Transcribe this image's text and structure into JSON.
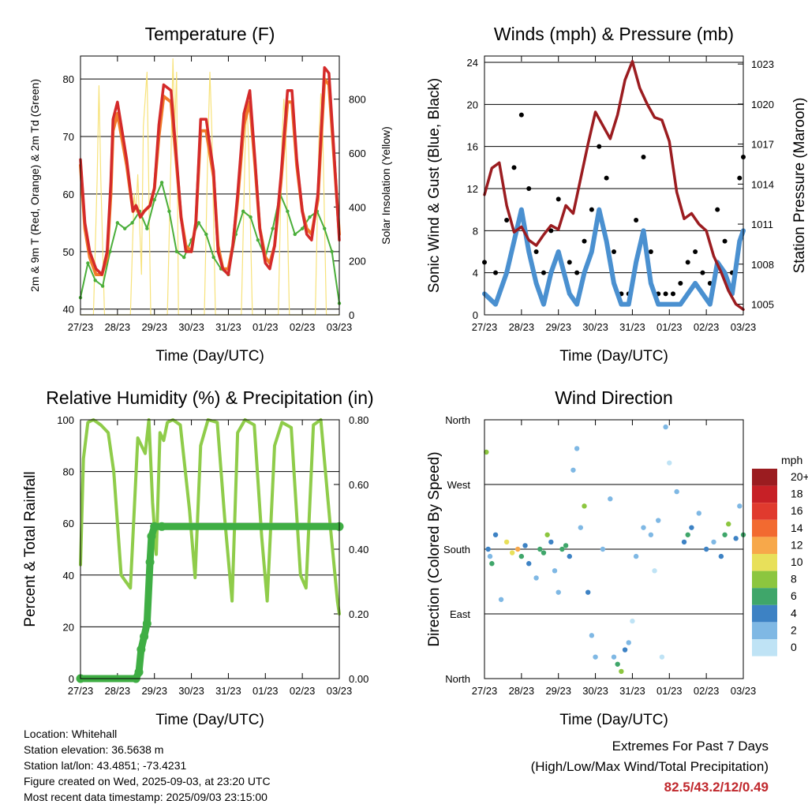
{
  "chart_data": [
    {
      "type": "line",
      "title": "Temperature (F)",
      "xlabel": "Time (Day/UTC)",
      "ylabel": "2m & 9m T (Red, Orange) & 2m Td (Green)",
      "ylabel_right": "Solar Insolation (Yellow)",
      "categories": [
        "27/23",
        "28/23",
        "29/23",
        "30/23",
        "31/23",
        "01/23",
        "02/23",
        "03/23"
      ],
      "ylim": [
        39,
        84
      ],
      "y_ticks": [
        40,
        50,
        60,
        70,
        80
      ],
      "y2lim": [
        0,
        960
      ],
      "y2_ticks": [
        0,
        200,
        400,
        600,
        800
      ],
      "series": [
        {
          "name": "2m T",
          "color": "#d42a2a",
          "x": [
            0,
            0.12,
            0.25,
            0.42,
            0.58,
            0.72,
            0.82,
            0.88,
            1.0,
            1.25,
            1.42,
            1.5,
            1.62,
            1.72,
            1.88,
            2.0,
            2.12,
            2.25,
            2.45,
            2.6,
            2.72,
            2.85,
            3.0,
            3.12,
            3.25,
            3.4,
            3.6,
            3.72,
            3.85,
            4.0,
            4.12,
            4.25,
            4.42,
            4.58,
            4.72,
            4.85,
            5.0,
            5.12,
            5.25,
            5.42,
            5.6,
            5.72,
            5.85,
            6.0,
            6.12,
            6.25,
            6.42,
            6.6,
            6.72,
            6.85,
            7.0
          ],
          "values": [
            66,
            55,
            50,
            47,
            46,
            50,
            62,
            73,
            76,
            66,
            57,
            58,
            56,
            57,
            58,
            61,
            72,
            79,
            78,
            66,
            56,
            50,
            50,
            55,
            73,
            73,
            64,
            50,
            47,
            46,
            51,
            60,
            74,
            78,
            66,
            54,
            48,
            47,
            51,
            63,
            78,
            78,
            66,
            57,
            53,
            52,
            60,
            82,
            81,
            68,
            52
          ]
        },
        {
          "name": "9m T",
          "color": "#f07a2a",
          "x": [
            0,
            0.12,
            0.25,
            0.42,
            0.58,
            0.72,
            0.82,
            0.88,
            1.0,
            1.25,
            1.42,
            1.5,
            1.62,
            1.72,
            1.88,
            2.0,
            2.12,
            2.25,
            2.45,
            2.6,
            2.72,
            2.85,
            3.0,
            3.12,
            3.25,
            3.4,
            3.6,
            3.72,
            3.85,
            4.0,
            4.12,
            4.25,
            4.42,
            4.58,
            4.72,
            4.85,
            5.0,
            5.12,
            5.25,
            5.42,
            5.6,
            5.72,
            5.85,
            6.0,
            6.12,
            6.25,
            6.42,
            6.6,
            6.72,
            6.85,
            7.0
          ],
          "values": [
            65,
            54,
            49,
            46,
            46,
            49,
            60,
            71,
            74,
            65,
            57,
            58,
            56,
            57,
            58,
            61,
            70,
            77,
            76,
            65,
            56,
            51,
            50,
            55,
            71,
            71,
            63,
            51,
            47,
            47,
            51,
            59,
            72,
            76,
            65,
            54,
            49,
            48,
            51,
            62,
            76,
            76,
            65,
            57,
            54,
            53,
            59,
            80,
            79,
            67,
            53
          ]
        },
        {
          "name": "2m Td",
          "color": "#4aae3a",
          "x": [
            0,
            0.2,
            0.4,
            0.6,
            0.8,
            1.0,
            1.2,
            1.4,
            1.6,
            1.8,
            2.0,
            2.2,
            2.4,
            2.6,
            2.8,
            3.0,
            3.2,
            3.4,
            3.6,
            3.8,
            4.0,
            4.2,
            4.4,
            4.6,
            4.8,
            5.0,
            5.2,
            5.4,
            5.6,
            5.8,
            6.0,
            6.2,
            6.4,
            6.6,
            6.8,
            7.0
          ],
          "values": [
            42,
            48,
            45,
            44,
            50,
            55,
            54,
            55,
            57,
            54,
            59,
            62,
            57,
            50,
            49,
            52,
            55,
            53,
            49,
            47,
            46,
            53,
            57,
            56,
            52,
            49,
            54,
            60,
            57,
            53,
            54,
            56,
            57,
            54,
            50,
            41
          ]
        },
        {
          "name": "Solar Insolation",
          "color": "#f7e27a",
          "axis": "right",
          "x": [
            0,
            0.35,
            0.45,
            0.5,
            0.55,
            0.65,
            1.35,
            1.45,
            1.5,
            1.55,
            1.65,
            1.7,
            1.8,
            1.9,
            2.35,
            2.45,
            2.5,
            2.55,
            2.6,
            2.65,
            3.35,
            3.45,
            3.5,
            3.55,
            3.65,
            4.35,
            4.45,
            4.5,
            4.55,
            4.65,
            5.35,
            5.45,
            5.5,
            5.55,
            5.65,
            6.35,
            6.45,
            6.5,
            6.55,
            6.65,
            7.0
          ],
          "values": [
            0,
            0,
            500,
            850,
            500,
            0,
            0,
            450,
            380,
            520,
            150,
            700,
            900,
            0,
            0,
            600,
            950,
            700,
            900,
            0,
            0,
            650,
            900,
            700,
            0,
            0,
            600,
            800,
            620,
            0,
            0,
            650,
            800,
            680,
            0,
            0,
            650,
            820,
            700,
            0,
            0
          ]
        }
      ]
    },
    {
      "type": "scatter",
      "title": "Winds (mph) & Pressure (mb)",
      "xlabel": "Time (Day/UTC)",
      "ylabel": "Sonic Wind & Gust (Blue, Black)",
      "ylabel_right": "Station Pressure (Maroon)",
      "categories": [
        "27/23",
        "28/23",
        "29/23",
        "30/23",
        "31/23",
        "01/23",
        "02/23",
        "03/23"
      ],
      "ylim": [
        0,
        24.6
      ],
      "y_ticks": [
        0,
        4,
        8,
        12,
        16,
        20,
        24
      ],
      "y2lim": [
        1004.2,
        1023.6
      ],
      "y2_ticks": [
        1005,
        1008,
        1011,
        1014,
        1017,
        1020,
        1023
      ],
      "series": [
        {
          "name": "Gust",
          "color": "#000000",
          "x": [
            0,
            0.3,
            0.6,
            0.8,
            1.0,
            1.2,
            1.4,
            1.6,
            1.8,
            2.0,
            2.3,
            2.5,
            2.7,
            2.9,
            3.1,
            3.3,
            3.5,
            3.7,
            3.9,
            4.1,
            4.3,
            4.5,
            4.7,
            4.9,
            5.1,
            5.3,
            5.5,
            5.7,
            5.9,
            6.1,
            6.3,
            6.5,
            6.7,
            6.9,
            7.0
          ],
          "values": [
            5,
            4,
            9,
            14,
            19,
            12,
            6,
            4,
            8,
            11,
            5,
            4,
            7,
            10,
            16,
            13,
            6,
            2,
            2,
            9,
            15,
            6,
            2,
            2,
            2,
            3,
            5,
            6,
            4,
            3,
            10,
            7,
            4,
            13,
            15
          ]
        },
        {
          "name": "Sonic Wind",
          "color": "#4a90d0",
          "x": [
            0,
            0.3,
            0.6,
            0.8,
            1.0,
            1.2,
            1.4,
            1.6,
            1.8,
            2.0,
            2.3,
            2.5,
            2.7,
            2.9,
            3.1,
            3.3,
            3.5,
            3.7,
            3.9,
            4.1,
            4.3,
            4.5,
            4.7,
            4.9,
            5.1,
            5.3,
            5.5,
            5.7,
            5.9,
            6.1,
            6.3,
            6.5,
            6.7,
            6.9,
            7.0
          ],
          "values": [
            2,
            1,
            4,
            7,
            10,
            6,
            3,
            1,
            4,
            6,
            2,
            1,
            4,
            6,
            10,
            7,
            3,
            1,
            1,
            5,
            8,
            3,
            1,
            1,
            1,
            1,
            2,
            3,
            2,
            1,
            5,
            4,
            2,
            7,
            8
          ]
        },
        {
          "name": "Station Pressure",
          "color": "#9b1c20",
          "axis": "right",
          "x": [
            0,
            0.2,
            0.4,
            0.6,
            0.8,
            1.0,
            1.2,
            1.4,
            1.6,
            1.8,
            2.0,
            2.2,
            2.4,
            2.6,
            2.8,
            3.0,
            3.2,
            3.4,
            3.6,
            3.8,
            4.0,
            4.2,
            4.4,
            4.6,
            4.8,
            5.0,
            5.2,
            5.4,
            5.6,
            5.8,
            6.0,
            6.2,
            6.4,
            6.6,
            6.8,
            7.0
          ],
          "values": [
            1013.2,
            1015.2,
            1015.6,
            1012.4,
            1010.4,
            1010.8,
            1009.8,
            1009.4,
            1010.2,
            1010.9,
            1010.6,
            1012.4,
            1011.8,
            1014.4,
            1017.0,
            1019.4,
            1018.4,
            1017.4,
            1019.2,
            1021.8,
            1023.2,
            1021.2,
            1020.0,
            1019.0,
            1018.8,
            1017.2,
            1013.4,
            1011.4,
            1011.8,
            1011.0,
            1010.5,
            1008.6,
            1007.4,
            1006.0,
            1005.0,
            1004.6
          ]
        }
      ]
    },
    {
      "type": "line",
      "title": "Relative Humidity (%) & Precipitation (in)",
      "xlabel": "Time (Day/UTC)",
      "ylabel": "Percent & Total Rainfall",
      "categories": [
        "27/23",
        "28/23",
        "29/23",
        "30/23",
        "31/23",
        "01/23",
        "02/23",
        "03/23"
      ],
      "ylim": [
        0,
        100
      ],
      "y_ticks": [
        0,
        20,
        40,
        60,
        80,
        100
      ],
      "y2lim": [
        0,
        0.8
      ],
      "y2_ticks": [
        "0.00",
        "0.20",
        "0.40",
        "0.60",
        "0.80"
      ],
      "series": [
        {
          "name": "Relative Humidity",
          "color": "#8fcc4a",
          "x": [
            0,
            0.08,
            0.2,
            0.35,
            0.55,
            0.75,
            0.9,
            1.1,
            1.35,
            1.55,
            1.75,
            1.85,
            1.95,
            2.05,
            2.15,
            2.25,
            2.35,
            2.5,
            2.7,
            2.95,
            3.1,
            3.25,
            3.45,
            3.7,
            3.9,
            4.1,
            4.25,
            4.45,
            4.7,
            4.9,
            5.05,
            5.25,
            5.45,
            5.7,
            5.95,
            6.1,
            6.3,
            6.5,
            6.75,
            6.95,
            7.0
          ],
          "values": [
            44,
            85,
            99,
            100,
            98,
            95,
            80,
            40,
            35,
            93,
            87,
            100,
            68,
            48,
            95,
            92,
            99,
            100,
            98,
            65,
            39,
            90,
            100,
            99,
            62,
            30,
            95,
            100,
            98,
            55,
            30,
            90,
            99,
            97,
            40,
            35,
            98,
            100,
            60,
            30,
            25
          ]
        },
        {
          "name": "Total Rainfall",
          "color": "#3fae44",
          "axis": "right",
          "x": [
            0,
            1.5,
            1.58,
            1.64,
            1.72,
            1.8,
            1.88,
            1.92,
            2.0,
            2.2,
            7.0
          ],
          "values": [
            0,
            0,
            0.02,
            0.09,
            0.13,
            0.17,
            0.36,
            0.44,
            0.47,
            0.47,
            0.47
          ]
        }
      ]
    },
    {
      "type": "scatter",
      "title": "Wind Direction",
      "xlabel": "Time (Day/UTC)",
      "ylabel": "Direction (Colored By Speed)",
      "categories": [
        "27/23",
        "28/23",
        "29/23",
        "30/23",
        "31/23",
        "01/23",
        "02/23",
        "03/23"
      ],
      "y_ticks": [
        "North",
        "East",
        "South",
        "West",
        "North"
      ],
      "ylim": [
        0,
        360
      ],
      "legend": {
        "title": "mph",
        "position": "right",
        "labels": [
          "20+",
          "18",
          "16",
          "14",
          "12",
          "10",
          "8",
          "6",
          "4",
          "2",
          "0"
        ],
        "colors": [
          "#9b1c20",
          "#c72026",
          "#e03a2e",
          "#f26a30",
          "#f7a84a",
          "#e8e05a",
          "#8cc63f",
          "#3fa66a",
          "#3d82c4",
          "#7fb8e4",
          "#bfe3f5"
        ]
      },
      "x": [
        0.05,
        0.1,
        0.15,
        0.2,
        0.3,
        0.45,
        0.6,
        0.75,
        0.9,
        1.0,
        1.1,
        1.2,
        1.4,
        1.5,
        1.6,
        1.7,
        1.8,
        1.9,
        2.0,
        2.1,
        2.2,
        2.3,
        2.4,
        2.5,
        2.6,
        2.7,
        2.8,
        2.9,
        3.0,
        3.2,
        3.4,
        3.5,
        3.6,
        3.7,
        3.8,
        3.9,
        4.0,
        4.1,
        4.3,
        4.5,
        4.6,
        4.7,
        4.8,
        4.9,
        5.0,
        5.2,
        5.4,
        5.5,
        5.6,
        5.8,
        6.0,
        6.2,
        6.4,
        6.5,
        6.6,
        6.8,
        6.9,
        7.0
      ],
      "directions": [
        315,
        180,
        170,
        160,
        200,
        110,
        190,
        175,
        180,
        170,
        185,
        160,
        140,
        180,
        175,
        200,
        190,
        150,
        120,
        180,
        185,
        170,
        290,
        320,
        210,
        240,
        120,
        60,
        30,
        180,
        250,
        30,
        20,
        10,
        40,
        50,
        80,
        170,
        210,
        200,
        150,
        220,
        30,
        350,
        300,
        260,
        190,
        200,
        210,
        230,
        180,
        190,
        170,
        200,
        215,
        195,
        240,
        200
      ],
      "speeds": [
        7,
        3,
        2,
        5,
        4,
        1,
        10,
        9,
        11,
        6,
        4,
        3,
        1,
        6,
        5,
        7,
        4,
        2,
        1,
        5,
        6,
        3,
        2,
        1,
        1,
        7,
        3,
        2,
        1,
        1,
        2,
        1,
        6,
        7,
        3,
        1,
        0,
        2,
        1,
        2,
        0,
        1,
        0,
        1,
        0,
        1,
        4,
        5,
        3,
        2,
        3,
        1,
        4,
        6,
        7,
        3,
        2,
        6
      ]
    }
  ],
  "info": {
    "location": "Location: Whitehall",
    "elevation": "Station elevation: 36.5638 m",
    "latlon": "Station lat/lon: 43.4851; -73.4231",
    "created": "Figure created on Wed, 2025-09-03, at 23:20 UTC",
    "recent": "Most recent data timestamp: 2025/09/03 23:15:00"
  },
  "extremes": {
    "line1": "Extremes For Past 7 Days",
    "line2": "(High/Low/Max Wind/Total Precipitation)",
    "values": "82.5/43.2/12/0.49"
  }
}
